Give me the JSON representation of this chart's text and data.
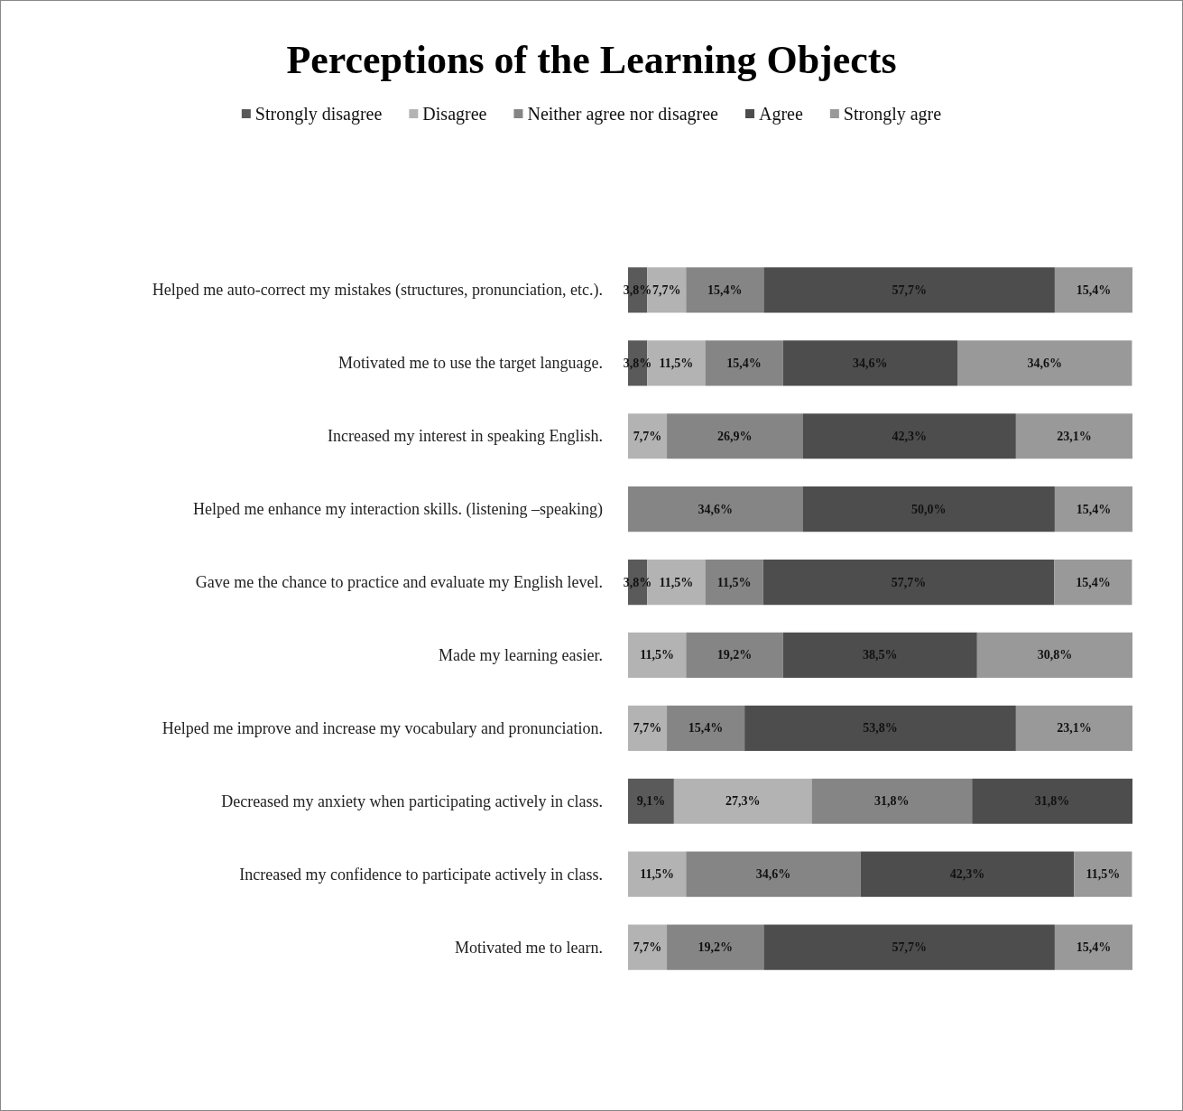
{
  "chart_data": {
    "type": "bar",
    "title": "Perceptions of the Learning Objects",
    "orientation": "horizontal",
    "stacked": true,
    "legend": "top",
    "tick_labels": "y",
    "categories": [
      "Helped me auto-correct my mistakes (structures, pronunciation, etc.).",
      "Motivated me to use the target language.",
      "Increased my interest in speaking English.",
      "Helped me enhance my interaction skills. (listening –speaking)",
      "Gave me the chance to practice and evaluate my English level.",
      "Made my learning easier.",
      "Helped me improve and increase my vocabulary and pronunciation.",
      "Decreased my anxiety when participating actively in class.",
      "Increased my confidence to participate actively in class.",
      "Motivated me to learn."
    ],
    "series": [
      {
        "name": "Strongly disagree",
        "color": "#5a5a5a",
        "values": [
          3.8,
          3.8,
          null,
          null,
          3.8,
          null,
          null,
          9.1,
          null,
          null
        ],
        "value_labels": [
          "3,8%",
          "3,8%",
          null,
          null,
          "3,8%",
          null,
          null,
          "9,1%",
          null,
          null
        ]
      },
      {
        "name": "Disagree",
        "color": "#b3b3b3",
        "values": [
          7.7,
          11.5,
          7.7,
          null,
          11.5,
          11.5,
          7.7,
          27.3,
          11.5,
          7.7
        ],
        "value_labels": [
          "7,7%",
          "11,5%",
          "7,7%",
          null,
          "11,5%",
          "11,5%",
          "7,7%",
          "27,3%",
          "11,5%",
          "7,7%"
        ]
      },
      {
        "name": "Neither agree nor disagree",
        "color": "#858585",
        "values": [
          15.4,
          15.4,
          26.9,
          34.6,
          11.5,
          19.2,
          15.4,
          31.8,
          34.6,
          19.2
        ],
        "value_labels": [
          "15,4%",
          "15,4%",
          "26,9%",
          "34,6%",
          "11,5%",
          "19,2%",
          "15,4%",
          "31,8%",
          "34,6%",
          "19,2%"
        ]
      },
      {
        "name": "Agree",
        "color": "#4d4d4d",
        "values": [
          57.7,
          34.6,
          42.3,
          50.0,
          57.7,
          38.5,
          53.8,
          31.8,
          42.3,
          57.7
        ],
        "value_labels": [
          "57,7%",
          "34,6%",
          "42,3%",
          "50,0%",
          "57,7%",
          "38,5%",
          "53,8%",
          "31,8%",
          "42,3%",
          "57,7%"
        ]
      },
      {
        "name": "Strongly agre",
        "color": "#999999",
        "values": [
          15.4,
          34.6,
          23.1,
          15.4,
          15.4,
          30.8,
          23.1,
          null,
          11.5,
          15.4
        ],
        "value_labels": [
          "15,4%",
          "34,6%",
          "23,1%",
          "15,4%",
          "15,4%",
          "30,8%",
          "23,1%",
          null,
          "11,5%",
          "15,4%"
        ]
      }
    ]
  }
}
